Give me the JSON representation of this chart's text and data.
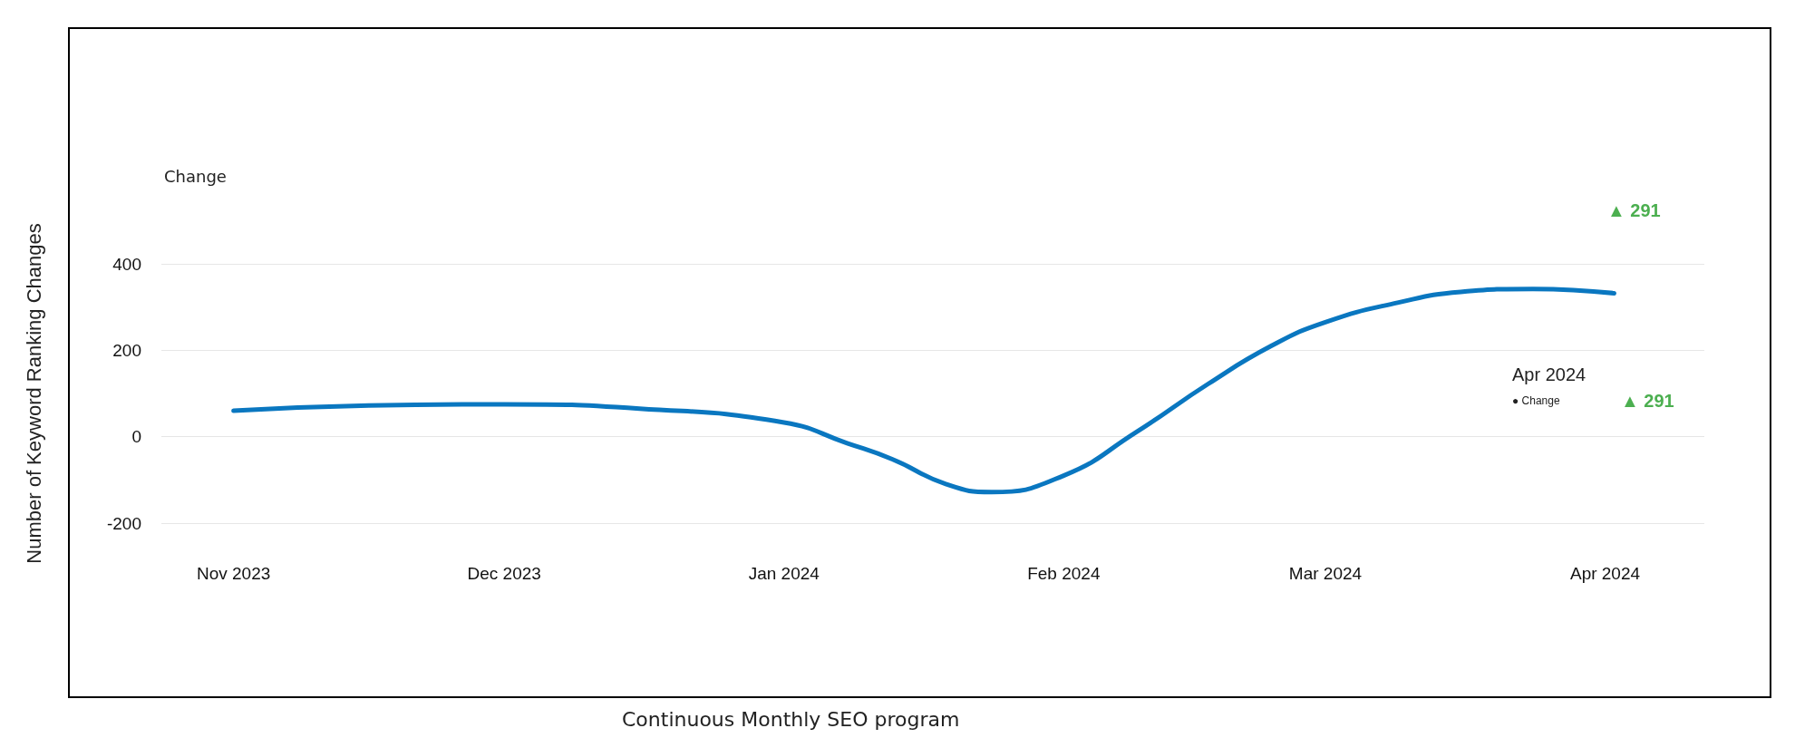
{
  "chart_data": {
    "type": "line",
    "title": "Change",
    "ylabel": "Number of Keyword Ranking Changes",
    "x": [
      "2023-11-01",
      "2023-11-16",
      "2023-12-01",
      "2023-12-16",
      "2024-01-01",
      "2024-01-08",
      "2024-01-13",
      "2024-01-19",
      "2024-01-24",
      "2024-02-01",
      "2024-02-09",
      "2024-02-17",
      "2024-02-24",
      "2024-03-01",
      "2024-03-09",
      "2024-03-16",
      "2024-03-24",
      "2024-04-02"
    ],
    "series": [
      {
        "color": "#0a77c0",
        "values": [
          60,
          72,
          75,
          65,
          33,
          -15,
          -52,
          -110,
          -128,
          -90,
          10,
          122,
          210,
          265,
          310,
          335,
          342,
          332
        ]
      }
    ],
    "xlim": [
      "2023-10-24",
      "2024-04-12"
    ],
    "xticks": [
      {
        "value": "2023-11-01",
        "label": "Nov 2023"
      },
      {
        "value": "2023-12-01",
        "label": "Dec 2023"
      },
      {
        "value": "2024-01-01",
        "label": "Jan 2024"
      },
      {
        "value": "2024-02-01",
        "label": "Feb 2024"
      },
      {
        "value": "2024-03-01",
        "label": "Mar 2024"
      },
      {
        "value": "2024-04-01",
        "label": "Apr 2024"
      }
    ],
    "ylim": [
      -200,
      400
    ],
    "yticks": [
      -200,
      0,
      200,
      400
    ],
    "grid": "y",
    "marker": "none",
    "line_style": "solid",
    "annotations": [
      "▲ 291",
      "Apr 2024",
      "● Change",
      "▲ 291",
      "Continuous Monthly SEO program"
    ]
  }
}
